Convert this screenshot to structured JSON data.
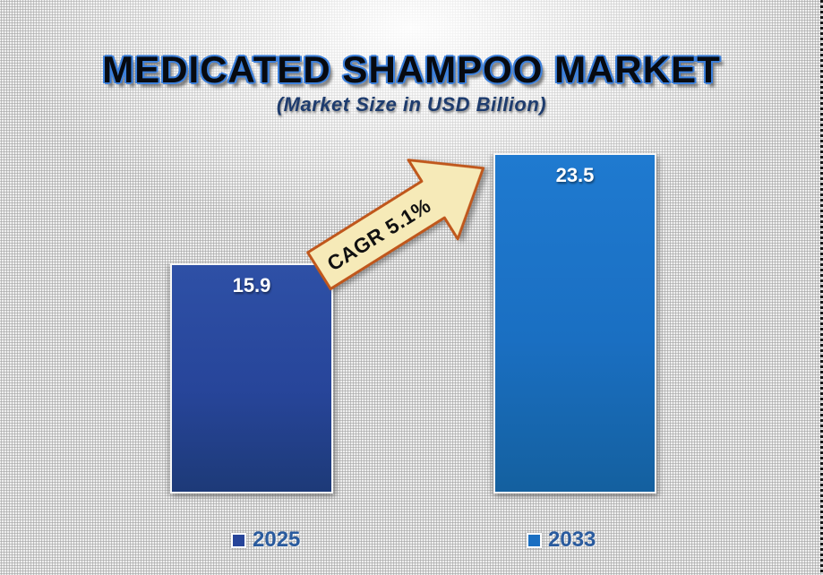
{
  "slide": {
    "title": "MEDICATED SHAMPOO MARKET",
    "subtitle": "(Market Size in USD Billion)"
  },
  "chart_data": {
    "type": "bar",
    "title": "MEDICATED SHAMPOO MARKET",
    "subtitle": "(Market Size in USD Billion)",
    "unit": "USD Billion",
    "categories": [
      "2025",
      "2033"
    ],
    "values": [
      15.9,
      23.5
    ],
    "value_labels": [
      "15.9",
      "23.5"
    ],
    "annotation": "CAGR 5.1%",
    "legend_position": "bottom",
    "grid": false,
    "ylim": [
      0,
      23.5
    ],
    "bar_colors": [
      {
        "top": "#2e50a6",
        "mid": "#27459a",
        "bottom": "#1d3a78"
      },
      {
        "top": "#1f7ad0",
        "mid": "#1a6fc2",
        "bottom": "#14609f"
      }
    ],
    "value_label_color": "#ffffff",
    "arrow_fill": "#f6eab8",
    "arrow_border": "#c0571c",
    "title_outline_color": "#3c80dc",
    "legend_text_color": "#2a5b9e"
  }
}
